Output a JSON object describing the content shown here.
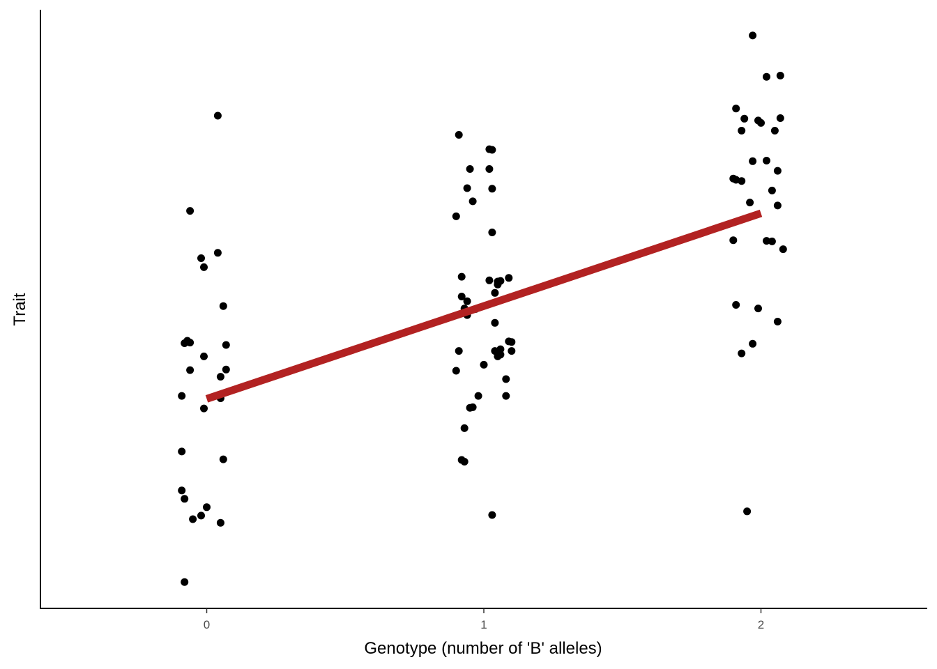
{
  "chart_data": {
    "type": "scatter",
    "title": "",
    "xlabel": "Genotype (number of 'B' alleles)",
    "ylabel": "Trait",
    "x_ticks": [
      "0",
      "1",
      "2"
    ],
    "xlim": [
      -0.6,
      2.6
    ],
    "ylim": [
      0,
      100
    ],
    "y_ticks_shown": false,
    "grid": false,
    "legend": "none",
    "colors": {
      "points": "#000000",
      "fit_line": "#B22222"
    },
    "fit_line": {
      "x": [
        0,
        2
      ],
      "y": [
        35.0,
        66.0
      ]
    },
    "series": [
      {
        "group": 0,
        "points": [
          [
            0.04,
            82.3
          ],
          [
            -0.06,
            66.4
          ],
          [
            0.04,
            59.4
          ],
          [
            -0.02,
            58.5
          ],
          [
            -0.01,
            57.0
          ],
          [
            0.06,
            50.5
          ],
          [
            -0.07,
            44.7
          ],
          [
            -0.08,
            44.3
          ],
          [
            -0.06,
            44.4
          ],
          [
            0.07,
            44.0
          ],
          [
            -0.01,
            42.1
          ],
          [
            -0.06,
            39.8
          ],
          [
            0.07,
            39.9
          ],
          [
            0.05,
            38.7
          ],
          [
            -0.09,
            35.5
          ],
          [
            0.05,
            35.1
          ],
          [
            -0.01,
            33.4
          ],
          [
            -0.09,
            26.2
          ],
          [
            0.06,
            24.9
          ],
          [
            -0.09,
            19.7
          ],
          [
            -0.08,
            18.3
          ],
          [
            0.0,
            16.9
          ],
          [
            -0.02,
            15.5
          ],
          [
            -0.05,
            14.9
          ],
          [
            0.05,
            14.3
          ],
          [
            -0.08,
            4.4
          ]
        ]
      },
      {
        "group": 1,
        "points": [
          [
            0.91,
            79.1
          ],
          [
            1.02,
            76.7
          ],
          [
            1.03,
            76.6
          ],
          [
            0.95,
            73.4
          ],
          [
            1.02,
            73.4
          ],
          [
            0.94,
            70.2
          ],
          [
            1.03,
            70.1
          ],
          [
            0.96,
            68.0
          ],
          [
            0.9,
            65.5
          ],
          [
            1.03,
            62.8
          ],
          [
            0.92,
            55.4
          ],
          [
            1.09,
            55.2
          ],
          [
            1.02,
            54.8
          ],
          [
            1.05,
            54.6
          ],
          [
            1.06,
            54.7
          ],
          [
            1.05,
            54.1
          ],
          [
            1.04,
            52.7
          ],
          [
            0.92,
            52.1
          ],
          [
            0.94,
            51.3
          ],
          [
            0.93,
            50.1
          ],
          [
            0.97,
            50.0
          ],
          [
            0.94,
            49.0
          ],
          [
            1.04,
            47.7
          ],
          [
            1.09,
            44.6
          ],
          [
            1.1,
            44.5
          ],
          [
            1.06,
            43.3
          ],
          [
            0.91,
            43.0
          ],
          [
            1.04,
            43.0
          ],
          [
            1.1,
            43.0
          ],
          [
            1.06,
            42.4
          ],
          [
            1.05,
            42.1
          ],
          [
            1.0,
            40.7
          ],
          [
            0.9,
            39.7
          ],
          [
            1.08,
            38.3
          ],
          [
            0.98,
            35.5
          ],
          [
            1.08,
            35.5
          ],
          [
            0.96,
            33.6
          ],
          [
            0.95,
            33.5
          ],
          [
            0.93,
            30.1
          ],
          [
            0.92,
            24.8
          ],
          [
            0.93,
            24.5
          ],
          [
            1.03,
            15.6
          ]
        ]
      },
      {
        "group": 2,
        "points": [
          [
            1.97,
            95.7
          ],
          [
            2.02,
            88.8
          ],
          [
            2.07,
            89.0
          ],
          [
            1.91,
            83.5
          ],
          [
            2.07,
            81.9
          ],
          [
            1.94,
            81.8
          ],
          [
            1.99,
            81.5
          ],
          [
            2.0,
            81.1
          ],
          [
            1.93,
            79.8
          ],
          [
            2.05,
            79.8
          ],
          [
            1.97,
            74.7
          ],
          [
            2.02,
            74.8
          ],
          [
            2.06,
            73.1
          ],
          [
            1.9,
            71.8
          ],
          [
            1.91,
            71.6
          ],
          [
            1.93,
            71.4
          ],
          [
            2.04,
            69.8
          ],
          [
            1.96,
            67.8
          ],
          [
            2.06,
            67.3
          ],
          [
            1.9,
            61.5
          ],
          [
            2.02,
            61.4
          ],
          [
            2.04,
            61.3
          ],
          [
            2.08,
            60.0
          ],
          [
            1.91,
            50.7
          ],
          [
            1.99,
            50.1
          ],
          [
            2.06,
            47.9
          ],
          [
            1.97,
            44.2
          ],
          [
            1.93,
            42.6
          ],
          [
            1.95,
            16.2
          ]
        ]
      }
    ]
  }
}
